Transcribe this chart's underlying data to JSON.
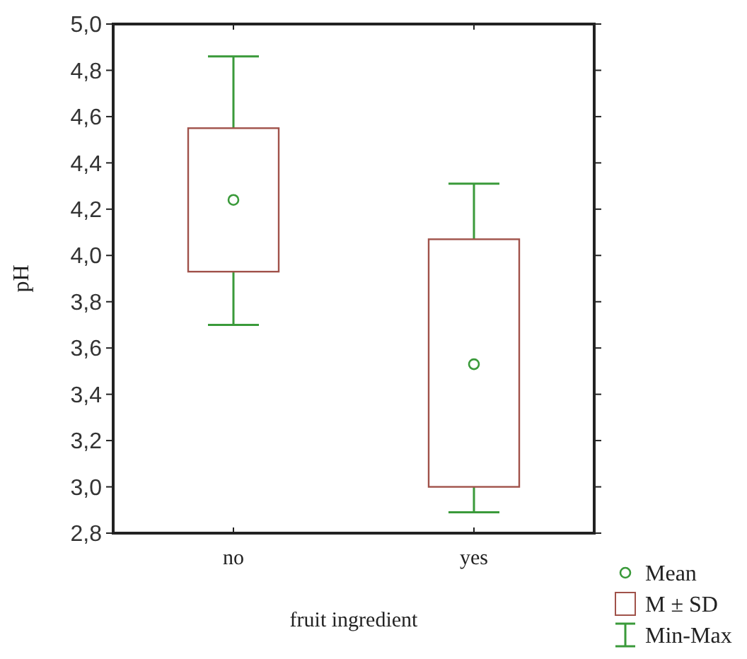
{
  "chart_data": {
    "type": "box",
    "xlabel": "fruit ingredient",
    "ylabel": "pH",
    "categories": [
      "no",
      "yes"
    ],
    "ylim": [
      2.8,
      5.0
    ],
    "yticks": [
      {
        "value": 2.8,
        "label": "2,8"
      },
      {
        "value": 3.0,
        "label": "3,0"
      },
      {
        "value": 3.2,
        "label": "3,2"
      },
      {
        "value": 3.4,
        "label": "3,4"
      },
      {
        "value": 3.6,
        "label": "3,6"
      },
      {
        "value": 3.8,
        "label": "3,8"
      },
      {
        "value": 4.0,
        "label": "4,0"
      },
      {
        "value": 4.2,
        "label": "4,2"
      },
      {
        "value": 4.4,
        "label": "4,4"
      },
      {
        "value": 4.6,
        "label": "4,6"
      },
      {
        "value": 4.8,
        "label": "4,8"
      },
      {
        "value": 5.0,
        "label": "5,0"
      }
    ],
    "series": [
      {
        "name": "Mean",
        "type": "scatter",
        "color": "#3a9a3a",
        "x": [
          "no",
          "yes"
        ],
        "values": [
          4.24,
          3.53
        ],
        "errors": [
          [
            3.7,
            4.86
          ],
          [
            2.89,
            4.31
          ]
        ],
        "marker": "circle"
      },
      {
        "name": "M ± SD",
        "color": "#a0524a",
        "boxes": [
          {
            "q1": 3.93,
            "q3": 4.55
          },
          {
            "q1": 3.0,
            "q3": 4.07
          }
        ]
      }
    ],
    "legend": "bottom right",
    "annotations": [
      "Min-Max"
    ],
    "grid": false
  }
}
